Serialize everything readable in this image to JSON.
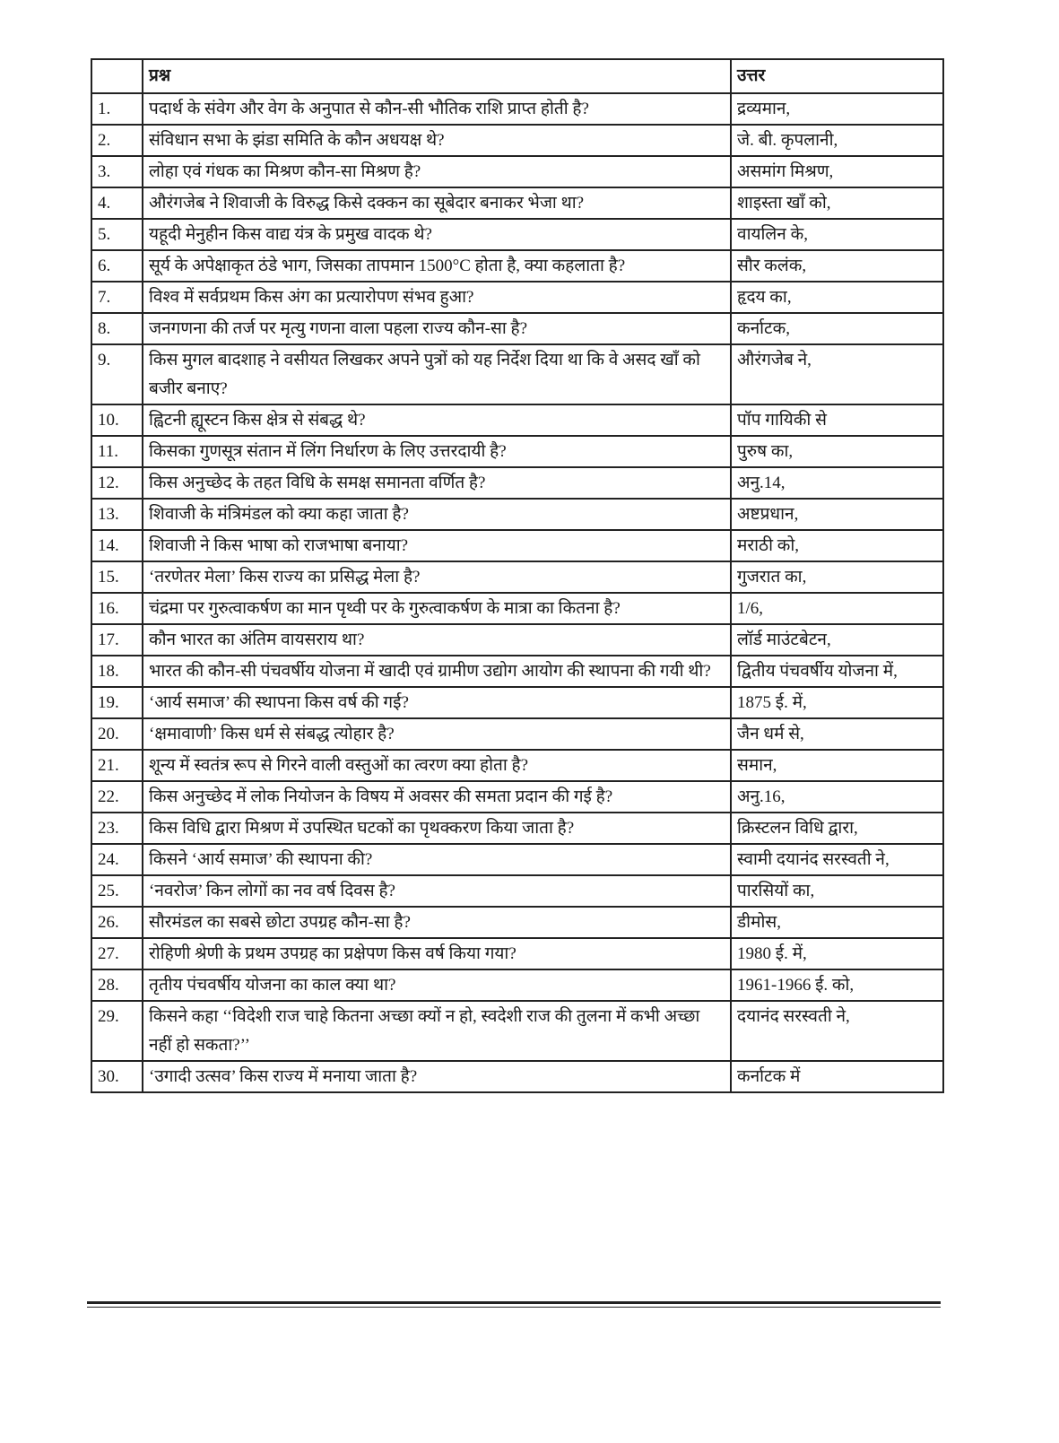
{
  "table": {
    "headers": {
      "number": "",
      "question": "प्रश्न",
      "answer": "उत्तर"
    },
    "rows": [
      {
        "n": "1.",
        "q": "पदार्थ के संवेग और वेग के अनुपात से कौन-सी भौतिक राशि प्राप्त होती है?",
        "a": "द्रव्यमान,"
      },
      {
        "n": "2.",
        "q": "संविधान सभा के झंडा समिति के कौन अधयक्ष थे?",
        "a": "जे. बी. कृपलानी,"
      },
      {
        "n": "3.",
        "q": "लोहा एवं गंधक का मिश्रण कौन-सा मिश्रण है?",
        "a": "असमांग मिश्रण,"
      },
      {
        "n": "4.",
        "q": "औरंगजेब ने शिवाजी के विरुद्ध किसे दक्कन का सूबेदार बनाकर भेजा था?",
        "a": "शाइस्ता खाँ को,"
      },
      {
        "n": "5.",
        "q": "यहूदी मेनुहीन किस वाद्य यंत्र के प्रमुख वादक थे?",
        "a": "वायलिन के,"
      },
      {
        "n": "6.",
        "q": "सूर्य के अपेक्षाकृत ठंडे भाग, जिसका तापमान 1500°C होता है, क्या कहलाता है?",
        "a": "सौर कलंक,"
      },
      {
        "n": "7.",
        "q": "विश्व में सर्वप्रथम किस अंग का प्रत्यारोपण संभव हुआ?",
        "a": "हृदय का,"
      },
      {
        "n": "8.",
        "q": "जनगणना की तर्ज पर मृत्यु गणना वाला पहला राज्य कौन-सा है?",
        "a": "कर्नाटक,"
      },
      {
        "n": "9.",
        "q": "किस मुगल बादशाह ने वसीयत लिखकर अपने पुत्रों को यह निर्देश दिया था कि वे असद खाँ को बजीर बनाए?",
        "a": "औरंगजेब ने,"
      },
      {
        "n": "10.",
        "q": "ह्विटनी ह्यूस्टन किस क्षेत्र से संबद्ध थे?",
        "a": "पॉप गायिकी से"
      },
      {
        "n": "11.",
        "q": "किसका गुणसूत्र संतान में लिंग निर्धारण के लिए उत्तरदायी है?",
        "a": "पुरुष का,"
      },
      {
        "n": "12.",
        "q": "किस अनुच्छेद के तहत विधि के समक्ष समानता वर्णित है?",
        "a": "अनु.14,"
      },
      {
        "n": "13.",
        "q": "शिवाजी के मंत्रिमंडल को क्या कहा जाता है?",
        "a": "अष्टप्रधान,"
      },
      {
        "n": "14.",
        "q": "शिवाजी ने किस भाषा को राजभाषा बनाया?",
        "a": "मराठी को,"
      },
      {
        "n": "15.",
        "q": "‘तरणेतर मेला’ किस राज्य का प्रसिद्ध मेला है?",
        "a": "गुजरात का,"
      },
      {
        "n": "16.",
        "q": "चंद्रमा पर गुरुत्वाकर्षण का मान पृथ्वी पर के गुरुत्वाकर्षण के मात्रा का कितना है?",
        "a": "1/6,"
      },
      {
        "n": "17.",
        "q": "कौन भारत का अंतिम वायसराय था?",
        "a": "लॉर्ड माउंटबेटन,"
      },
      {
        "n": "18.",
        "q": "भारत की कौन-सी पंचवर्षीय योजना में खादी एवं ग्रामीण उद्योग आयोग की स्थापना की गयी थी?",
        "a": "द्वितीय पंचवर्षीय योजना में,"
      },
      {
        "n": "19.",
        "q": "‘आर्य समाज’ की स्थापना किस वर्ष की गई?",
        "a": "1875 ई. में,"
      },
      {
        "n": "20.",
        "q": "‘क्षमावाणी’ किस धर्म से संबद्ध त्योहार है?",
        "a": "जैन धर्म से,"
      },
      {
        "n": "21.",
        "q": "शून्य में स्वतंत्र रूप से गिरने वाली वस्तुओं का त्वरण क्या होता है?",
        "a": "समान,"
      },
      {
        "n": "22.",
        "q": "किस अनुच्छेद में लोक नियोजन के विषय में अवसर की समता प्रदान की गई है?",
        "a": "अनु.16,"
      },
      {
        "n": "23.",
        "q": "किस विधि द्वारा मिश्रण में उपस्थित घटकों का पृथक्करण किया जाता है?",
        "a": "क्रिस्टलन विधि द्वारा,"
      },
      {
        "n": "24.",
        "q": "किसने ‘आर्य समाज’ की स्थापना की?",
        "a": "स्वामी दयानंद सरस्वती ने,"
      },
      {
        "n": "25.",
        "q": "‘नवरोज’ किन लोगों का नव वर्ष दिवस है?",
        "a": "पारसियों का,"
      },
      {
        "n": "26.",
        "q": "सौरमंडल का सबसे छोटा उपग्रह कौन-सा है?",
        "a": "डीमोस,"
      },
      {
        "n": "27.",
        "q": "रोहिणी श्रेणी के प्रथम उपग्रह का प्रक्षेपण किस वर्ष किया गया?",
        "a": "1980 ई. में,"
      },
      {
        "n": "28.",
        "q": "तृतीय पंचवर्षीय योजना का काल क्या था?",
        "a": "1961-1966 ई. को,"
      },
      {
        "n": "29.",
        "q": "किसने कहा ‘‘विदेशी राज चाहे कितना अच्छा क्यों न हो, स्वदेशी राज की तुलना में कभी अच्छा नहीं हो सकता?’’",
        "a": "दयानंद सरस्वती ने,"
      },
      {
        "n": "30.",
        "q": "‘उगादी उत्सव’ किस राज्य में मनाया जाता है?",
        "a": "कर्नाटक में"
      }
    ]
  }
}
